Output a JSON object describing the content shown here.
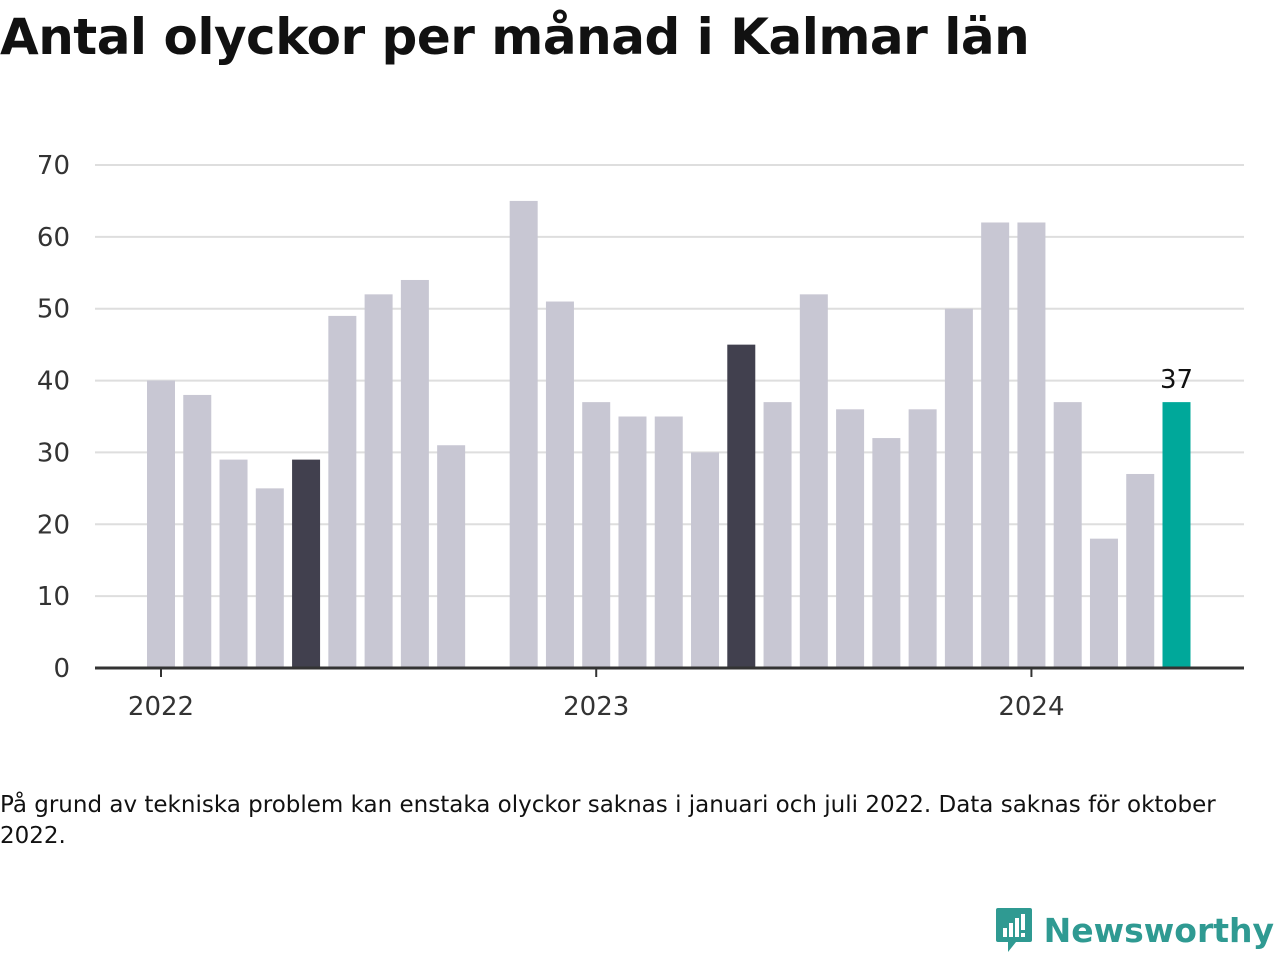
{
  "chart_data": {
    "type": "bar",
    "title": "Antal olyckor per månad i Kalmar län",
    "note": "På grund av tekniska problem kan enstaka olyckor saknas i januari och juli 2022. Data saknas för oktober 2022.",
    "source": "Newsworthy",
    "ylim": [
      0,
      70
    ],
    "yticks": [
      0,
      10,
      20,
      30,
      40,
      50,
      60,
      70
    ],
    "grid": true,
    "xtick_labels": [
      {
        "label": "2022",
        "category": "2022-01"
      },
      {
        "label": "2023",
        "category": "2023-01"
      },
      {
        "label": "2024",
        "category": "2024-01"
      }
    ],
    "categories": [
      "2022-01",
      "2022-02",
      "2022-03",
      "2022-04",
      "2022-05",
      "2022-06",
      "2022-07",
      "2022-08",
      "2022-09",
      "2022-10",
      "2022-11",
      "2022-12",
      "2023-01",
      "2023-02",
      "2023-03",
      "2023-04",
      "2023-05",
      "2023-06",
      "2023-07",
      "2023-08",
      "2023-09",
      "2023-10",
      "2023-11",
      "2023-12",
      "2024-01",
      "2024-02",
      "2024-03",
      "2024-04",
      "2024-05"
    ],
    "values": [
      40,
      38,
      29,
      25,
      29,
      49,
      52,
      54,
      31,
      null,
      65,
      51,
      37,
      35,
      35,
      30,
      45,
      37,
      52,
      36,
      32,
      36,
      50,
      62,
      62,
      37,
      18,
      27,
      37
    ],
    "highlight": {
      "2022-05": "dark",
      "2023-05": "dark",
      "2024-05": "accent"
    },
    "annotations": [
      {
        "category": "2024-05",
        "text": "37"
      }
    ],
    "colors": {
      "default": "#c8c7d3",
      "dark": "#41404e",
      "accent": "#00a89a",
      "grid": "#dedede",
      "axis": "#333333"
    }
  }
}
